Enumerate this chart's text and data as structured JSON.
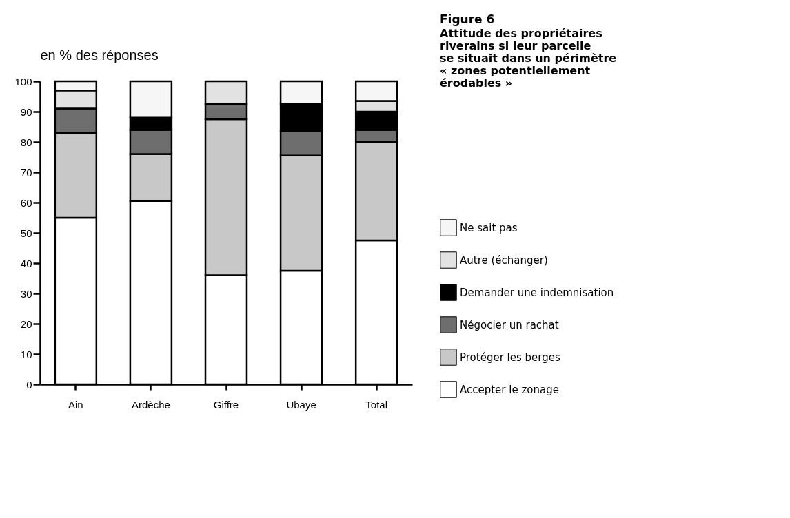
{
  "chart_data": {
    "type": "bar",
    "stacked": true,
    "title": "Figure 6",
    "subtitle": "Attitude des propriétaires riverains si leur parcelle se situait dans un périmètre « zones potentiellement érodables »",
    "ylabel": "en % des réponses",
    "categories": [
      "Ain",
      "Ardèche",
      "Giffre",
      "Ubaye",
      "Total"
    ],
    "series": [
      {
        "name": "Accepter le zonage",
        "color": "#ffffff",
        "values": [
          55,
          60.5,
          36,
          37.5,
          47.5
        ]
      },
      {
        "name": "Protéger les berges",
        "color": "#c8c8c8",
        "values": [
          28,
          15.5,
          51.5,
          38,
          32.5
        ]
      },
      {
        "name": "Négocier un rachat",
        "color": "#6e6e6e",
        "values": [
          8,
          8,
          5,
          8,
          4
        ]
      },
      {
        "name": "Demander une indemnisation",
        "color": "#000000",
        "values": [
          0,
          4,
          0,
          9,
          6
        ]
      },
      {
        "name": "Autre (échanger)",
        "color": "#e2e2e2",
        "values": [
          6,
          0,
          7.5,
          0,
          3.5
        ]
      },
      {
        "name": "Ne sait pas",
        "color": "#f6f6f6",
        "values": [
          3,
          12,
          0,
          7.5,
          6.5
        ]
      }
    ],
    "ylim": [
      0,
      100
    ],
    "yticks": [
      0,
      10,
      20,
      30,
      40,
      50,
      60,
      70,
      80,
      90,
      100
    ],
    "grid": false,
    "legend": "right"
  }
}
